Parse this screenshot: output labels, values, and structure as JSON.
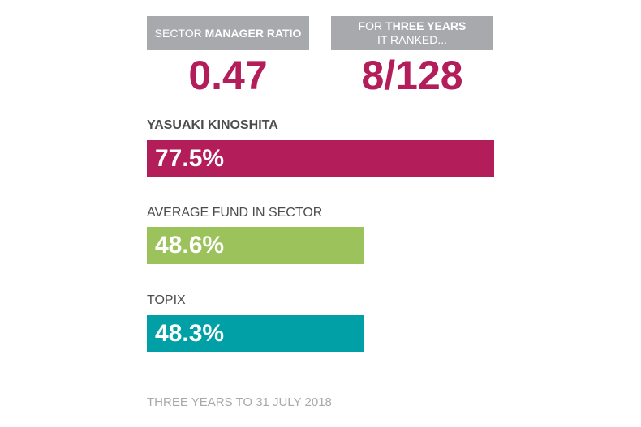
{
  "stats": {
    "ratio_label_prefix": "SECTOR ",
    "ratio_label_bold": "MANAGER RATIO",
    "ratio_value": "0.47",
    "rank_label_prefix": "FOR ",
    "rank_label_bold": "THREE YEARS",
    "rank_label_line2": "IT RANKED...",
    "rank_value": "8/128"
  },
  "chart_data": {
    "type": "bar",
    "orientation": "horizontal",
    "categories": [
      "YASUAKI KINOSHITA",
      "AVERAGE FUND IN SECTOR",
      "TOPIX"
    ],
    "values": [
      77.5,
      48.6,
      48.3
    ],
    "data_labels": [
      "77.5%",
      "48.6%",
      "48.3%"
    ],
    "colors": [
      "#b31e5a",
      "#9bc25b",
      "#00a0a6"
    ],
    "footnote": "THREE YEARS TO 31 JULY 2018",
    "grid": false
  },
  "colors": {
    "accent": "#b31e5a",
    "box": "#a7a9ac"
  }
}
